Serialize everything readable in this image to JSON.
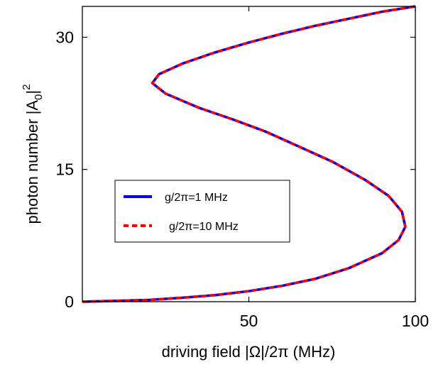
{
  "chart_data": {
    "type": "line",
    "xlabel": "driving field |Ω|/2π (MHz)",
    "ylabel": {
      "main": "photon number  |A",
      "sub": "0",
      "end": "|",
      "sup": "2"
    },
    "xlim": [
      0,
      100
    ],
    "ylim": [
      0,
      33.5
    ],
    "xticks": [
      50,
      100
    ],
    "yticks": [
      0,
      15,
      30
    ],
    "xtick_labels": [
      "50",
      "100"
    ],
    "ytick_labels": [
      "0",
      "15",
      "30"
    ],
    "grid": false,
    "legend_position": "center-left",
    "series": [
      {
        "name": "g/2π=1 MHz",
        "color": "#0000ff",
        "style": "solid",
        "points": [
          [
            0,
            0
          ],
          [
            10,
            0.1
          ],
          [
            20,
            0.2
          ],
          [
            30,
            0.45
          ],
          [
            40,
            0.75
          ],
          [
            50,
            1.2
          ],
          [
            60,
            1.8
          ],
          [
            70,
            2.6
          ],
          [
            80,
            3.8
          ],
          [
            90,
            5.5
          ],
          [
            95,
            7.0
          ],
          [
            97,
            8.5
          ],
          [
            96,
            10.2
          ],
          [
            92,
            12.0
          ],
          [
            85,
            13.8
          ],
          [
            75,
            15.9
          ],
          [
            65,
            17.6
          ],
          [
            55,
            19.3
          ],
          [
            45,
            20.7
          ],
          [
            35,
            22.0
          ],
          [
            25,
            23.6
          ],
          [
            21,
            24.8
          ],
          [
            23,
            25.8
          ],
          [
            30,
            27.0
          ],
          [
            40,
            28.3
          ],
          [
            50,
            29.4
          ],
          [
            60,
            30.4
          ],
          [
            70,
            31.3
          ],
          [
            80,
            32.1
          ],
          [
            90,
            32.9
          ],
          [
            100,
            33.5
          ]
        ]
      },
      {
        "name": "g/2π=10 MHz",
        "color": "#ff0000",
        "style": "dashed",
        "points": [
          [
            0,
            0
          ],
          [
            10,
            0.1
          ],
          [
            20,
            0.2
          ],
          [
            30,
            0.45
          ],
          [
            40,
            0.75
          ],
          [
            50,
            1.2
          ],
          [
            60,
            1.8
          ],
          [
            70,
            2.6
          ],
          [
            80,
            3.8
          ],
          [
            90,
            5.5
          ],
          [
            95,
            7.0
          ],
          [
            97,
            8.5
          ],
          [
            96,
            10.2
          ],
          [
            92,
            12.0
          ],
          [
            85,
            13.8
          ],
          [
            75,
            15.9
          ],
          [
            65,
            17.6
          ],
          [
            55,
            19.3
          ],
          [
            45,
            20.7
          ],
          [
            35,
            22.0
          ],
          [
            25,
            23.6
          ],
          [
            21,
            24.8
          ],
          [
            23,
            25.8
          ],
          [
            30,
            27.0
          ],
          [
            40,
            28.3
          ],
          [
            50,
            29.4
          ],
          [
            60,
            30.4
          ],
          [
            70,
            31.3
          ],
          [
            80,
            32.1
          ],
          [
            90,
            32.9
          ],
          [
            100,
            33.5
          ]
        ]
      }
    ]
  }
}
